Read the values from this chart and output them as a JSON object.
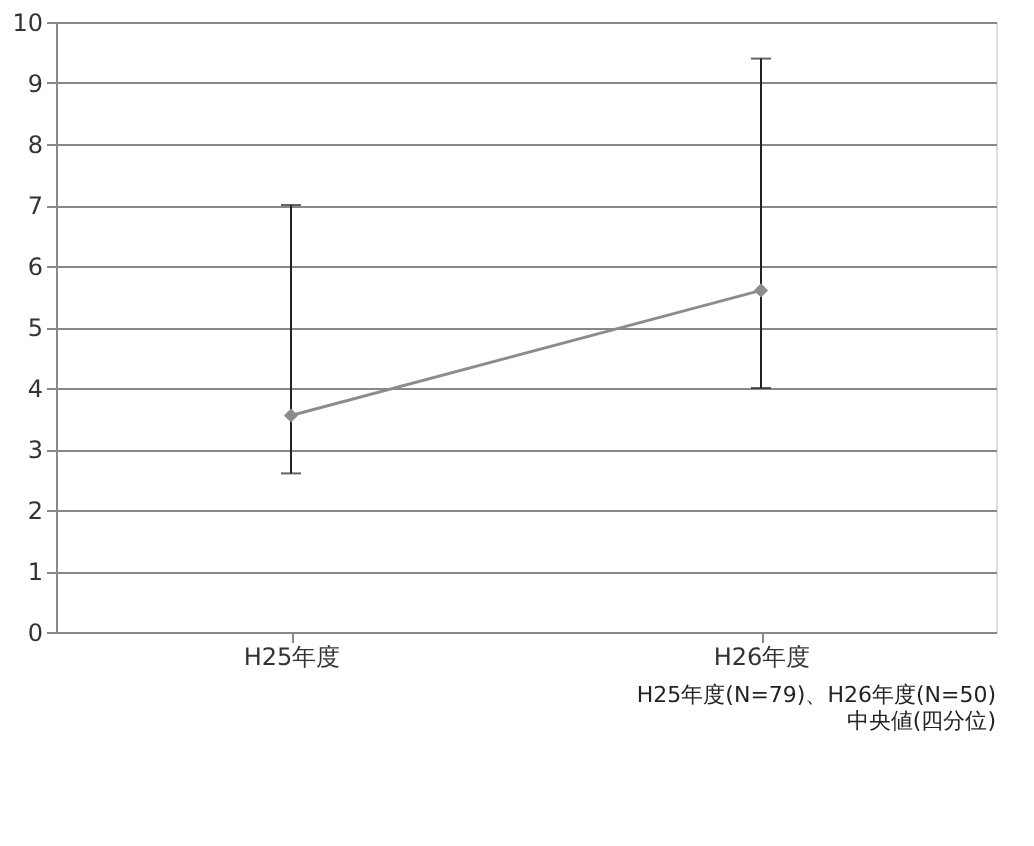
{
  "chart_data": {
    "type": "line",
    "categories": [
      "H25年度",
      "H26年度"
    ],
    "series": [
      {
        "color": "#8c8c8c",
        "values": [
          3.55,
          5.6
        ],
        "errors": [
          [
            2.6,
            7.0
          ],
          [
            4.0,
            9.4
          ]
        ]
      }
    ],
    "ylim": [
      0,
      10
    ],
    "yticks": [
      0,
      1,
      2,
      3,
      4,
      5,
      6,
      7,
      8,
      9,
      10
    ],
    "grid": "y",
    "marker": "diamond",
    "annotations": [
      "H25年度(N=79)、H26年度(N=50)",
      "中央値(四分位)"
    ]
  }
}
